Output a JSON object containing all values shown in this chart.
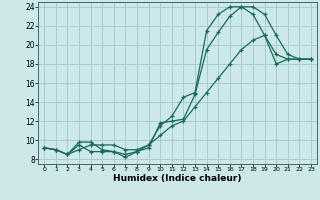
{
  "xlabel": "Humidex (Indice chaleur)",
  "ylabel": "",
  "background_color": "#cce8e8",
  "grid_color": "#aacccc",
  "line_color": "#1a6b5a",
  "xlim": [
    -0.5,
    23.5
  ],
  "ylim": [
    7.5,
    24.5
  ],
  "xticks": [
    0,
    1,
    2,
    3,
    4,
    5,
    6,
    7,
    8,
    9,
    10,
    11,
    12,
    13,
    14,
    15,
    16,
    17,
    18,
    19,
    20,
    21,
    22,
    23
  ],
  "yticks": [
    8,
    10,
    12,
    14,
    16,
    18,
    20,
    22,
    24
  ],
  "line1_x": [
    0,
    1,
    2,
    3,
    4,
    5,
    6,
    7,
    8,
    9,
    10,
    11,
    12,
    13,
    14,
    15,
    16,
    17,
    18,
    19,
    20,
    21,
    22,
    23
  ],
  "line1_y": [
    9.2,
    9.0,
    8.5,
    9.5,
    8.8,
    8.8,
    8.8,
    8.2,
    8.8,
    9.2,
    11.8,
    12.0,
    12.2,
    14.8,
    19.5,
    21.3,
    23.0,
    24.0,
    24.0,
    23.2,
    21.0,
    19.0,
    18.5,
    18.5
  ],
  "line2_x": [
    0,
    1,
    2,
    3,
    4,
    5,
    6,
    7,
    8,
    9,
    10,
    11,
    12,
    13,
    14,
    15,
    16,
    17,
    18,
    19,
    20,
    21,
    22,
    23
  ],
  "line2_y": [
    9.2,
    9.0,
    8.5,
    9.8,
    9.8,
    9.0,
    8.8,
    8.5,
    8.8,
    9.5,
    11.5,
    12.5,
    14.5,
    15.0,
    21.5,
    23.2,
    24.0,
    24.0,
    23.2,
    21.0,
    19.0,
    18.5,
    18.5,
    18.5
  ],
  "line3_x": [
    0,
    1,
    2,
    3,
    4,
    5,
    6,
    7,
    8,
    9,
    10,
    11,
    12,
    13,
    14,
    15,
    16,
    17,
    18,
    19,
    20,
    21,
    22,
    23
  ],
  "line3_y": [
    9.2,
    9.0,
    8.5,
    9.0,
    9.5,
    9.5,
    9.5,
    9.0,
    9.0,
    9.5,
    10.5,
    11.5,
    12.0,
    13.5,
    15.0,
    16.5,
    18.0,
    19.5,
    20.5,
    21.0,
    18.0,
    18.5,
    18.5,
    18.5
  ]
}
